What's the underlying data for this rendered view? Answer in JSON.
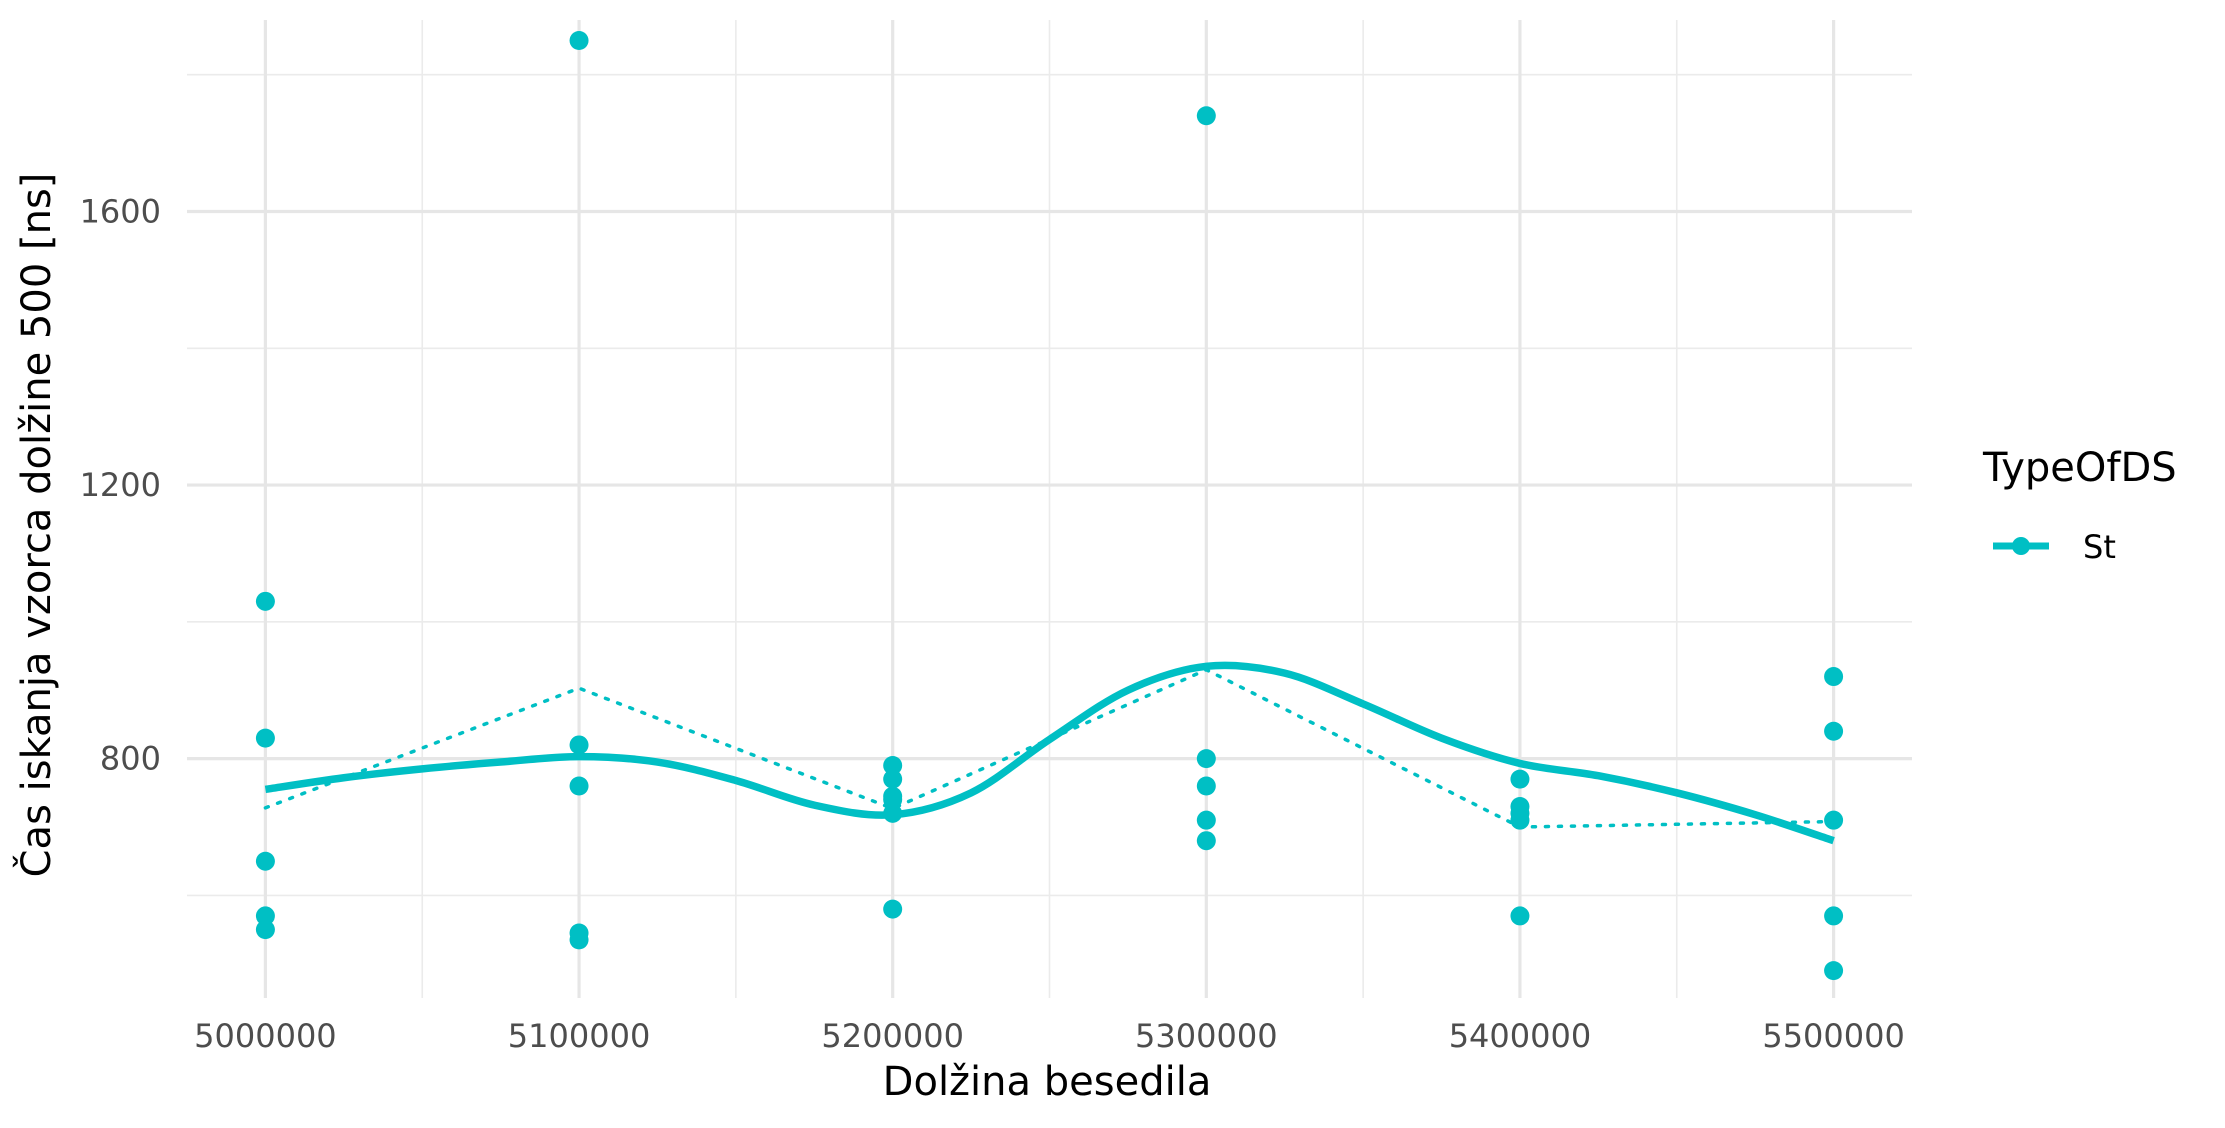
{
  "chart_data": {
    "type": "scatter",
    "xlabel": "Dolžina besedila",
    "ylabel": "Čas iskanja vzorca dolžine 500 [ns]",
    "xlim": [
      4975000,
      5525000
    ],
    "ylim": [
      450,
      1880
    ],
    "x_ticks": [
      5000000,
      5100000,
      5200000,
      5300000,
      5400000,
      5500000
    ],
    "x_tick_labels": [
      "5000000",
      "5100000",
      "5200000",
      "5300000",
      "5400000",
      "5500000"
    ],
    "y_ticks": [
      800,
      1200,
      1600
    ],
    "y_tick_labels": [
      "800",
      "1200",
      "1600"
    ],
    "grid": true,
    "legend": {
      "title": "TypeOfDS",
      "entries": [
        "St"
      ],
      "position": "right"
    },
    "series": [
      {
        "name": "St",
        "color": "#00BFC4",
        "points": [
          [
            5000000,
            1030
          ],
          [
            5000000,
            830
          ],
          [
            5000000,
            650
          ],
          [
            5000000,
            570
          ],
          [
            5000000,
            550
          ],
          [
            5100000,
            1850
          ],
          [
            5100000,
            820
          ],
          [
            5100000,
            760
          ],
          [
            5100000,
            545
          ],
          [
            5100000,
            535
          ],
          [
            5200000,
            790
          ],
          [
            5200000,
            770
          ],
          [
            5200000,
            745
          ],
          [
            5200000,
            740
          ],
          [
            5200000,
            720
          ],
          [
            5200000,
            580
          ],
          [
            5300000,
            1740
          ],
          [
            5300000,
            800
          ],
          [
            5300000,
            760
          ],
          [
            5300000,
            710
          ],
          [
            5300000,
            680
          ],
          [
            5400000,
            770
          ],
          [
            5400000,
            730
          ],
          [
            5400000,
            720
          ],
          [
            5400000,
            710
          ],
          [
            5400000,
            570
          ],
          [
            5500000,
            920
          ],
          [
            5500000,
            840
          ],
          [
            5500000,
            710
          ],
          [
            5500000,
            570
          ],
          [
            5500000,
            490
          ]
        ],
        "mean_line": [
          [
            5000000,
            728
          ],
          [
            5100000,
            903
          ],
          [
            5200000,
            727
          ],
          [
            5300000,
            930
          ],
          [
            5400000,
            700
          ],
          [
            5500000,
            708
          ]
        ],
        "smooth_line": [
          [
            5000000,
            755
          ],
          [
            5025000,
            772
          ],
          [
            5050000,
            785
          ],
          [
            5075000,
            795
          ],
          [
            5100000,
            803
          ],
          [
            5125000,
            795
          ],
          [
            5150000,
            768
          ],
          [
            5175000,
            732
          ],
          [
            5200000,
            718
          ],
          [
            5225000,
            750
          ],
          [
            5250000,
            828
          ],
          [
            5275000,
            900
          ],
          [
            5300000,
            935
          ],
          [
            5325000,
            925
          ],
          [
            5350000,
            880
          ],
          [
            5375000,
            830
          ],
          [
            5400000,
            793
          ],
          [
            5425000,
            775
          ],
          [
            5450000,
            750
          ],
          [
            5475000,
            718
          ],
          [
            5500000,
            680
          ]
        ]
      }
    ]
  }
}
